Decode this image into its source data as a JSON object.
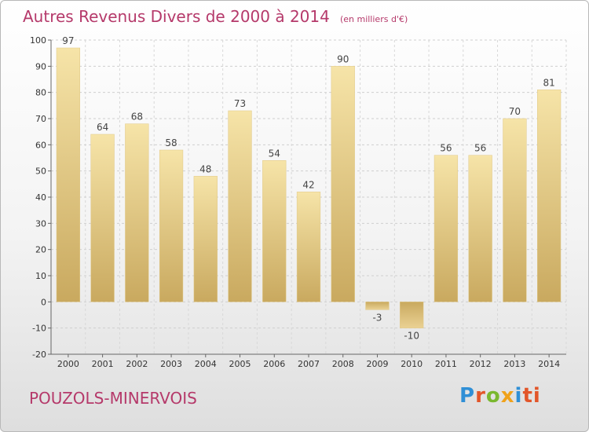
{
  "chart_data": {
    "type": "bar",
    "title": "Autres Revenus Divers de 2000 à 2014",
    "subtitle": "(en milliers d'€)",
    "categories": [
      "2000",
      "2001",
      "2002",
      "2003",
      "2004",
      "2005",
      "2006",
      "2007",
      "2008",
      "2009",
      "2010",
      "2011",
      "2012",
      "2013",
      "2014"
    ],
    "values": [
      97,
      64,
      68,
      58,
      48,
      73,
      54,
      42,
      90,
      -3,
      -10,
      56,
      56,
      70,
      81
    ],
    "ylim": [
      -20,
      100
    ],
    "yticks": [
      -20,
      -10,
      0,
      10,
      20,
      30,
      40,
      50,
      60,
      70,
      80,
      90,
      100
    ],
    "grid": true,
    "bar_color": "#e2c880",
    "title_color": "#b5396a"
  },
  "location": "POUZOLS-MINERVOIS",
  "logo": {
    "p": "P",
    "r": "r",
    "o": "o",
    "x": "x",
    "i": "i",
    "t": "ti"
  }
}
